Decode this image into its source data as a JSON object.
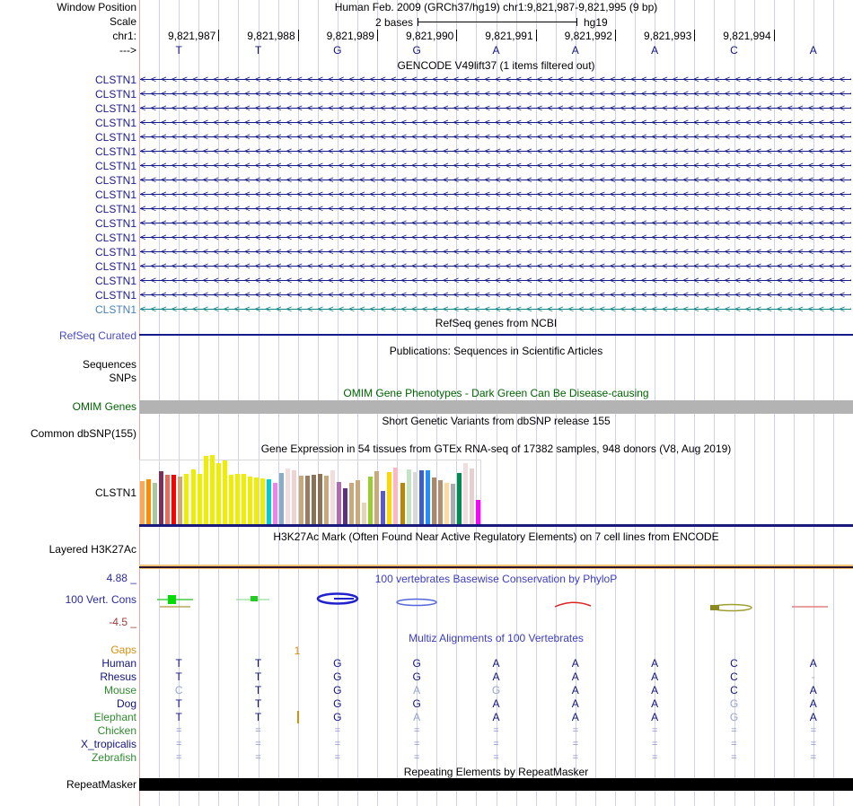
{
  "colors": {
    "navy": "#13137f",
    "green_species": "#2e8b2e",
    "orange_gaps": "#d2910f",
    "dim_base": "#9aa5cc",
    "eq_glyph": "#8a92cc",
    "gridline": "#cdd1ec",
    "pink_edge": "#efa8a8",
    "teal_transcript": "#0d8585",
    "teal_label": "#4781bc",
    "refseq_label": "#4a4ac0",
    "omim_green": "#006400",
    "omim_bar": "#b3b3b3",
    "phylop_blue": "#3d3dc0",
    "phylop_min_red": "#9e3a3a",
    "baseline_navy": "#1a1a7a",
    "h3k_orange": "#f2c577",
    "h3k_dark": "#2d1230",
    "black_bar": "#000000"
  },
  "header": {
    "window_position_label": "Window Position",
    "assembly_title": "Human Feb. 2009 (GRCh37/hg19)   chr1:9,821,987-9,821,995 (9 bp)",
    "scale_label": "Scale",
    "scale_text": "2 bases",
    "scale_assembly": "hg19",
    "chrom_label": "chr1:",
    "strand_label": "--->",
    "coordinates": [
      "9,821,987",
      "9,821,988",
      "9,821,989",
      "9,821,990",
      "9,821,991",
      "9,821,992",
      "9,821,993",
      "9,821,994"
    ],
    "bases": [
      "T",
      "T",
      "G",
      "G",
      "A",
      "A",
      "A",
      "C",
      "A"
    ]
  },
  "gencode": {
    "title": "GENCODE V49lift37 (1 items filtered out)",
    "arrow_char": "<",
    "arrow_count": 70,
    "rows": [
      {
        "label": "CLSTN1",
        "variant": "navy"
      },
      {
        "label": "CLSTN1",
        "variant": "navy"
      },
      {
        "label": "CLSTN1",
        "variant": "navy"
      },
      {
        "label": "CLSTN1",
        "variant": "navy"
      },
      {
        "label": "CLSTN1",
        "variant": "navy"
      },
      {
        "label": "CLSTN1",
        "variant": "navy"
      },
      {
        "label": "CLSTN1",
        "variant": "navy"
      },
      {
        "label": "CLSTN1",
        "variant": "navy"
      },
      {
        "label": "CLSTN1",
        "variant": "navy"
      },
      {
        "label": "CLSTN1",
        "variant": "navy"
      },
      {
        "label": "CLSTN1",
        "variant": "navy"
      },
      {
        "label": "CLSTN1",
        "variant": "navy"
      },
      {
        "label": "CLSTN1",
        "variant": "navy"
      },
      {
        "label": "CLSTN1",
        "variant": "navy"
      },
      {
        "label": "CLSTN1",
        "variant": "navy"
      },
      {
        "label": "CLSTN1",
        "variant": "navy"
      },
      {
        "label": "CLSTN1",
        "variant": "teal"
      }
    ]
  },
  "refseq": {
    "title": "RefSeq genes from NCBI",
    "label": "RefSeq Curated"
  },
  "publications": {
    "title": "Publications: Sequences in Scientific Articles",
    "label_sequences": "Sequences",
    "label_snps": "SNPs"
  },
  "omim": {
    "title": "OMIM Gene Phenotypes - Dark Green Can Be Disease-causing",
    "label": "OMIM Genes"
  },
  "dbsnp": {
    "title": "Short Genetic Variants from dbSNP release 155",
    "label": "Common dbSNP(155)"
  },
  "gtex": {
    "title": "Gene Expression in 54 tissues from GTEx RNA-seq of 17382 samples, 948 donors (V8, Aug 2019)",
    "label": "CLSTN1",
    "bar_colors": [
      "#FFA554",
      "#FF8C00",
      "#A8C8A0",
      "#7A2F5C",
      "#E96B5A",
      "#FF0000",
      "#C9A97C",
      "#EEEE00",
      "#EEEE00",
      "#EEEE00",
      "#EEEE00",
      "#EEEE00",
      "#EEEE00",
      "#EEEE00",
      "#EEEE00",
      "#EEEE00",
      "#EEEE00",
      "#EEEE00",
      "#EEEE00",
      "#EEEE00",
      "#00CDCD",
      "#EE82EE",
      "#87AEC4",
      "#F2DCDC",
      "#EFD3D3",
      "#C9A97C",
      "#9A7B62",
      "#8B7355",
      "#8B7355",
      "#C9A97C",
      "#F2DCDC",
      "#B06CB0",
      "#5C3380",
      "#C9A97C",
      "#C9A97C",
      "#E3D5BB",
      "#9ACD32",
      "#C9A97C",
      "#5A5ACD",
      "#FFD700",
      "#FFB6C1",
      "#B8860B",
      "#C4E4C4",
      "#D9D9D9",
      "#3A5FCD",
      "#1E90FF",
      "#AA8A66",
      "#B09070",
      "#FFD9A0",
      "#ABABAB",
      "#008B50",
      "#F0DEDE",
      "#E8CFCF",
      "#FF00FF"
    ],
    "bar_heights": [
      48,
      50,
      46,
      59,
      55,
      55,
      53,
      56,
      61,
      56,
      76,
      77,
      68,
      71,
      55,
      56,
      56,
      53,
      52,
      51,
      50,
      46,
      57,
      62,
      60,
      54,
      54,
      55,
      56,
      54,
      60,
      47,
      40,
      46,
      49,
      24,
      53,
      59,
      37,
      58,
      63,
      46,
      61,
      58,
      60,
      60,
      52,
      49,
      46,
      45,
      57,
      68,
      62,
      27
    ]
  },
  "h3k27ac": {
    "title": "H3K27Ac Mark (Often Found Near Active Regulatory Elements) on 7 cell lines from ENCODE",
    "label": "Layered H3K27Ac"
  },
  "phylop": {
    "title": "100 vertebrates Basewise Conservation by PhyloP",
    "label": "100 Vert. Cons",
    "max_value": "4.88 _",
    "min_value": "-4.5 _"
  },
  "multiz": {
    "title": "Multiz Alignments of 100 Vertebrates",
    "gaps_label": "Gaps",
    "gap_value": "1",
    "species": [
      {
        "name": "Human",
        "color_key": "navy",
        "cells": [
          "T",
          "T",
          "G",
          "G",
          "A",
          "A",
          "A",
          "C",
          "A"
        ],
        "dim": []
      },
      {
        "name": "Rhesus",
        "color_key": "navy",
        "cells": [
          "T",
          "T",
          "G",
          "G",
          "A",
          "A",
          "A",
          "C",
          "-"
        ],
        "dim": [
          8
        ]
      },
      {
        "name": "Mouse",
        "color_key": "green_species",
        "cells": [
          "C",
          "T",
          "G",
          "A",
          "G",
          "A",
          "A",
          "C",
          "A"
        ],
        "dim": [
          0,
          3,
          4
        ]
      },
      {
        "name": "Dog",
        "color_key": "navy",
        "cells": [
          "T",
          "T",
          "G",
          "G",
          "A",
          "A",
          "A",
          "G",
          "A"
        ],
        "dim": [
          7
        ]
      },
      {
        "name": "Elephant",
        "color_key": "green_species",
        "cells": [
          "T",
          "T",
          "G",
          "A",
          "A",
          "A",
          "A",
          "G",
          "A"
        ],
        "dim": [
          3,
          7
        ]
      },
      {
        "name": "Chicken",
        "color_key": "green_species",
        "cells": [
          "=",
          "=",
          "=",
          "=",
          "=",
          "=",
          "=",
          "=",
          "="
        ],
        "dim": []
      },
      {
        "name": "X_tropicalis",
        "color_key": "navy",
        "cells": [
          "=",
          "=",
          "=",
          "=",
          "=",
          "=",
          "=",
          "=",
          "="
        ],
        "dim": []
      },
      {
        "name": "Zebrafish",
        "color_key": "green_species",
        "cells": [
          "=",
          "=",
          "=",
          "=",
          "=",
          "=",
          "=",
          "=",
          "="
        ],
        "dim": []
      }
    ]
  },
  "repeatmasker": {
    "title": "Repeating Elements by RepeatMasker",
    "label": "RepeatMasker"
  }
}
